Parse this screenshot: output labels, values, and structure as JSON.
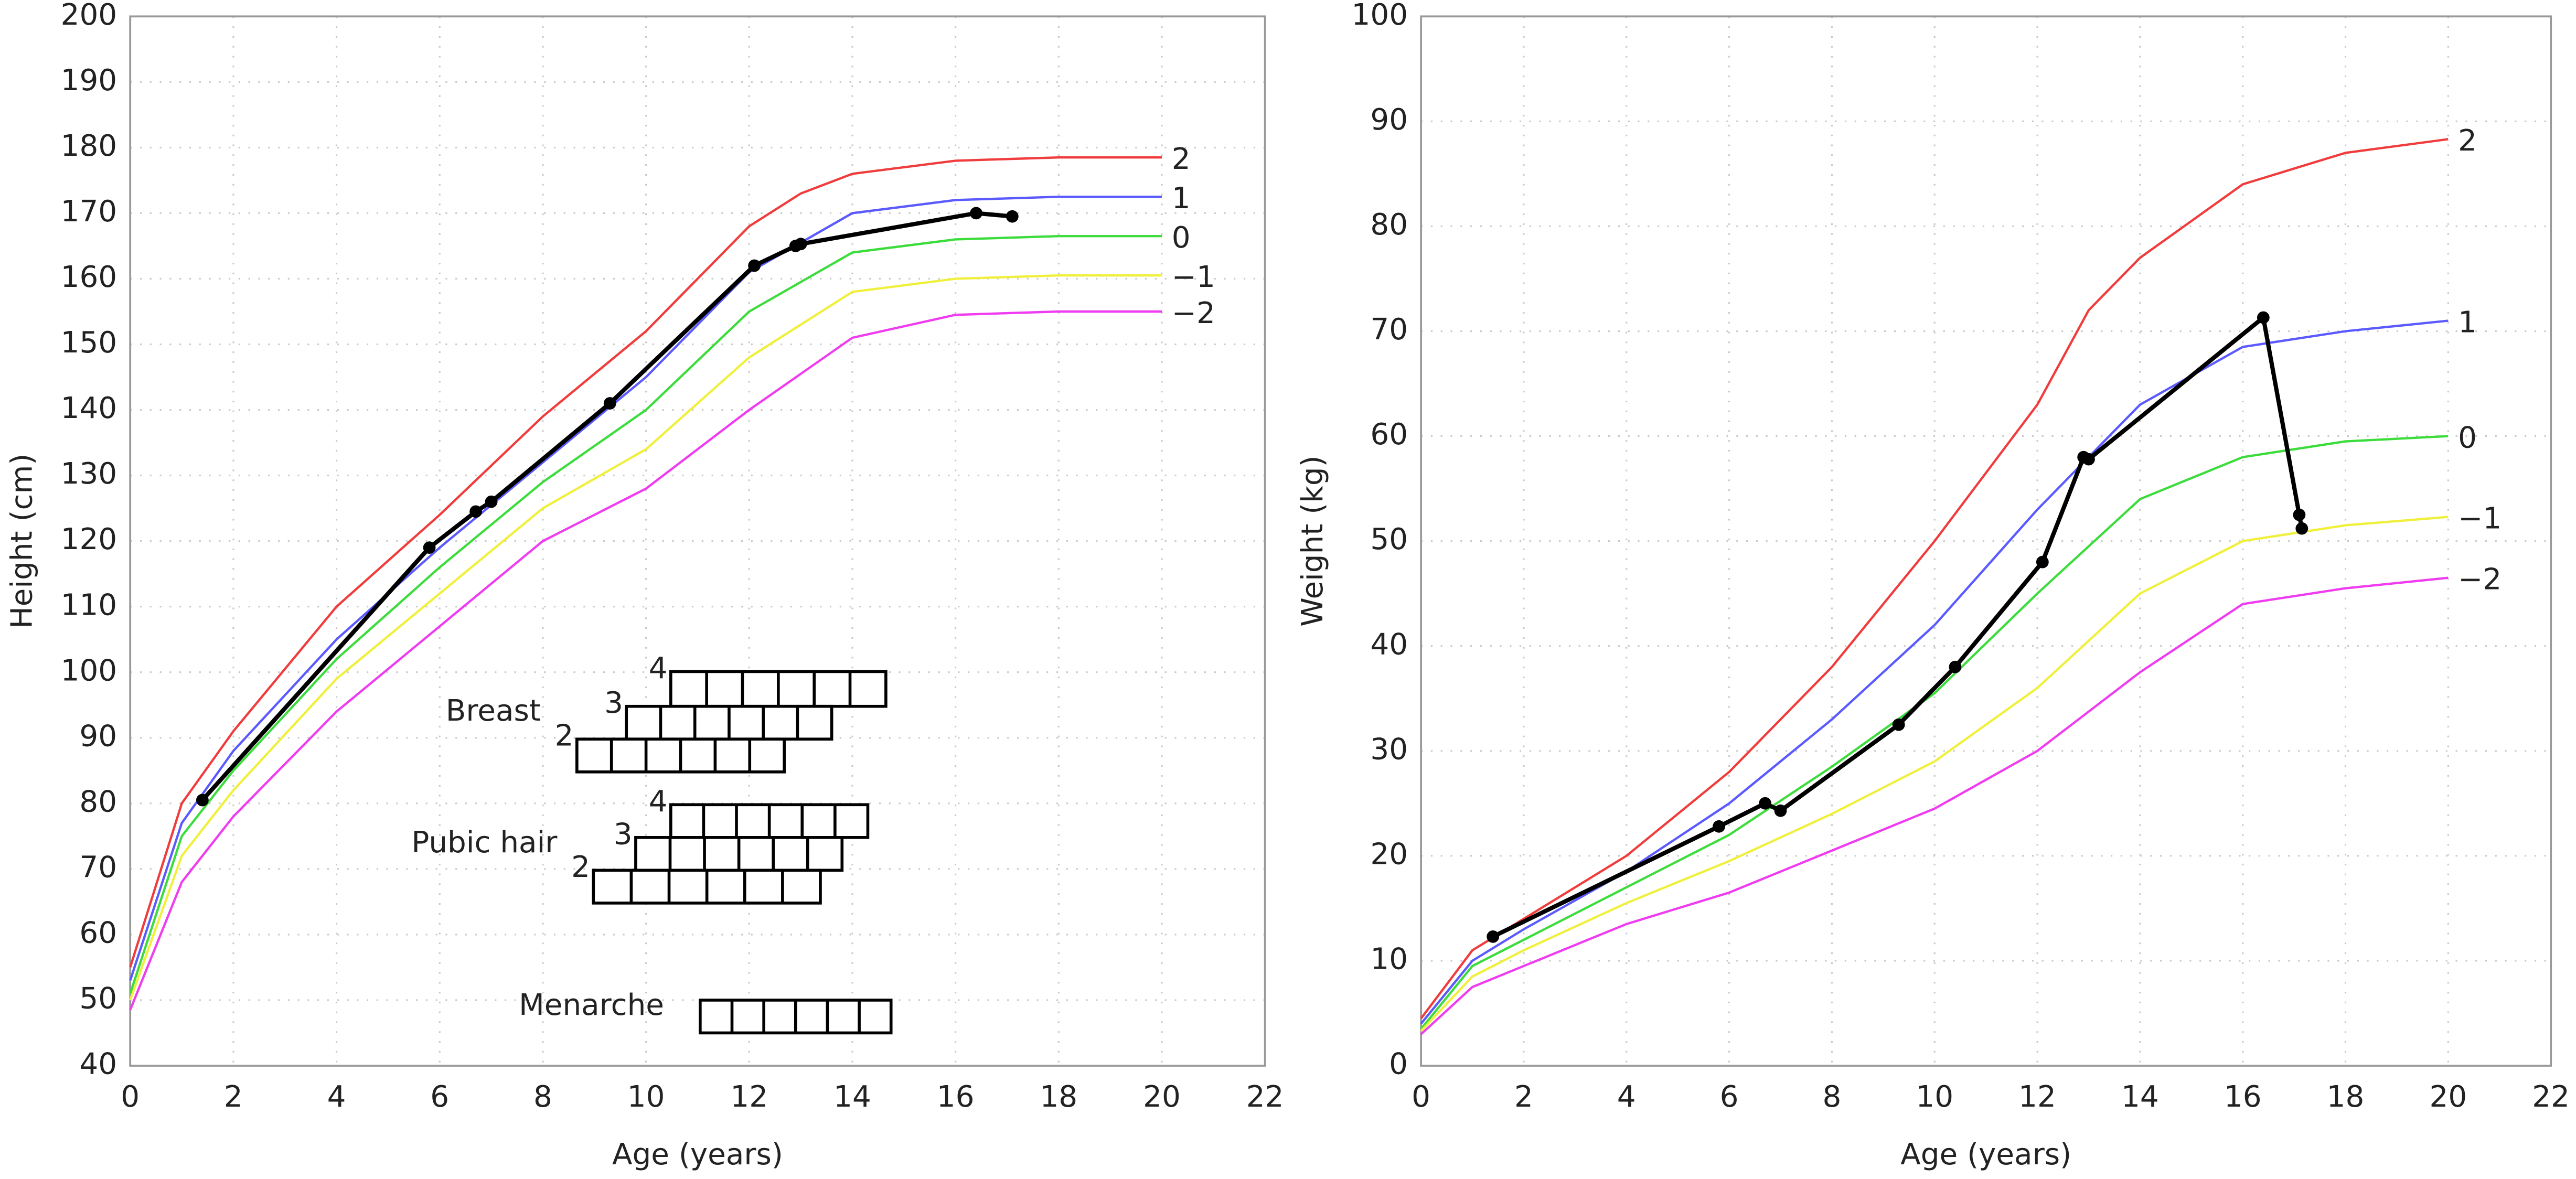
{
  "chart_data": [
    {
      "type": "line",
      "x_label": "Age (years)",
      "y_label": "Height (cm)",
      "xlim": [
        0,
        22
      ],
      "ylim": [
        40,
        200
      ],
      "xticks": [
        0,
        2,
        4,
        6,
        8,
        10,
        12,
        14,
        16,
        18,
        20,
        22
      ],
      "yticks": [
        40,
        50,
        60,
        70,
        80,
        90,
        100,
        110,
        120,
        130,
        140,
        150,
        160,
        170,
        180,
        190,
        200
      ],
      "grid": true,
      "series": [
        {
          "name": "2",
          "color": "#f03c3c",
          "x": [
            0,
            1,
            2,
            4,
            6,
            8,
            10,
            12,
            13,
            14,
            16,
            18,
            20
          ],
          "values": [
            55,
            80,
            91,
            110,
            124,
            139,
            152,
            168,
            173,
            176,
            178,
            178.5,
            178.5
          ]
        },
        {
          "name": "1",
          "color": "#5a5aff",
          "x": [
            0,
            1,
            2,
            4,
            6,
            8,
            10,
            12,
            14,
            16,
            18,
            20
          ],
          "values": [
            53,
            77,
            88,
            105,
            119,
            132,
            145,
            161,
            170,
            172,
            172.5,
            172.5
          ]
        },
        {
          "name": "0",
          "color": "#3cdc3c",
          "x": [
            0,
            1,
            2,
            4,
            6,
            8,
            10,
            12,
            14,
            16,
            18,
            20
          ],
          "values": [
            51,
            75,
            85,
            102,
            116,
            129,
            140,
            155,
            164,
            166,
            166.5,
            166.5
          ]
        },
        {
          "name": "−1",
          "color": "#f0f03c",
          "x": [
            0,
            1,
            2,
            4,
            6,
            8,
            10,
            12,
            14,
            16,
            18,
            20
          ],
          "values": [
            50,
            72,
            82,
            99,
            112,
            125,
            134,
            148,
            158,
            160,
            160.5,
            160.5
          ]
        },
        {
          "name": "−2",
          "color": "#f03cf0",
          "x": [
            0,
            1,
            2,
            4,
            6,
            8,
            10,
            12,
            14,
            16,
            18,
            20
          ],
          "values": [
            48.5,
            68,
            78,
            94,
            107,
            120,
            128,
            140,
            151,
            154.5,
            155,
            155
          ]
        },
        {
          "color": "#000000",
          "markers": true,
          "x": [
            1.4,
            5.8,
            6.7,
            7,
            9.3,
            12.1,
            12.9,
            13,
            16.4,
            17.1
          ],
          "values": [
            80.5,
            119,
            124.5,
            126,
            141,
            162,
            165,
            165.3,
            170,
            169.5
          ]
        }
      ],
      "stage_groups": [
        {
          "label": "Breast",
          "rows": [
            {
              "label": "4",
              "x": [
                10.48,
                14.65
              ],
              "y": [
                94.8,
                100.1
              ],
              "cells": 6
            },
            {
              "label": "3",
              "x": [
                9.62,
                13.6
              ],
              "y": [
                89.8,
                94.8
              ],
              "cells": 6
            },
            {
              "label": "2",
              "x": [
                8.66,
                12.68
              ],
              "y": [
                84.8,
                89.8
              ],
              "cells": 6
            }
          ]
        },
        {
          "label": "Pubic hair",
          "rows": [
            {
              "label": "4",
              "x": [
                10.48,
                14.3
              ],
              "y": [
                74.8,
                79.8
              ],
              "cells": 6
            },
            {
              "label": "3",
              "x": [
                9.8,
                13.8
              ],
              "y": [
                69.8,
                74.8
              ],
              "cells": 6
            },
            {
              "label": "2",
              "x": [
                8.98,
                13.38
              ],
              "y": [
                64.8,
                69.8
              ],
              "cells": 6
            }
          ]
        },
        {
          "label": "Menarche",
          "rows": [
            {
              "x": [
                11.05,
                14.75
              ],
              "y": [
                45,
                50
              ],
              "cells": 6
            }
          ]
        }
      ]
    },
    {
      "type": "line",
      "x_label": "Age (years)",
      "y_label": "Weight (kg)",
      "xlim": [
        0,
        22
      ],
      "ylim": [
        0,
        100
      ],
      "xticks": [
        0,
        2,
        4,
        6,
        8,
        10,
        12,
        14,
        16,
        18,
        20,
        22
      ],
      "yticks": [
        0,
        10,
        20,
        30,
        40,
        50,
        60,
        70,
        80,
        90,
        100
      ],
      "grid": true,
      "series": [
        {
          "name": "2",
          "color": "#f03c3c",
          "x": [
            0,
            1,
            2,
            4,
            6,
            8,
            10,
            12,
            13,
            14,
            16,
            18,
            20
          ],
          "values": [
            4.5,
            11,
            14,
            20,
            28,
            38,
            50,
            63,
            72,
            77,
            84,
            87,
            88.3
          ]
        },
        {
          "name": "1",
          "color": "#5a5aff",
          "x": [
            0,
            1,
            2,
            4,
            6,
            8,
            10,
            12,
            14,
            16,
            18,
            20
          ],
          "values": [
            4,
            10,
            13,
            18.5,
            25,
            33,
            42,
            53,
            63,
            68.5,
            70,
            71
          ]
        },
        {
          "name": "0",
          "color": "#3cdc3c",
          "x": [
            0,
            1,
            2,
            4,
            6,
            8,
            10,
            12,
            14,
            16,
            18,
            20
          ],
          "values": [
            3.5,
            9.5,
            12,
            17,
            22,
            28.5,
            35.5,
            45,
            54,
            58,
            59.5,
            60
          ]
        },
        {
          "name": "−1",
          "color": "#f0f03c",
          "x": [
            0,
            1,
            2,
            4,
            6,
            8,
            10,
            12,
            14,
            16,
            18,
            20
          ],
          "values": [
            3.3,
            8.5,
            11,
            15.5,
            19.5,
            24,
            29,
            36,
            45,
            50,
            51.5,
            52.3
          ]
        },
        {
          "name": "−2",
          "color": "#f03cf0",
          "x": [
            0,
            1,
            2,
            4,
            6,
            8,
            10,
            12,
            14,
            16,
            18,
            20
          ],
          "values": [
            3,
            7.5,
            9.5,
            13.5,
            16.5,
            20.5,
            24.5,
            30,
            37.5,
            44,
            45.5,
            46.5
          ]
        },
        {
          "color": "#000000",
          "markers": true,
          "x": [
            1.4,
            5.8,
            6.7,
            7,
            9.3,
            10.4,
            12.1,
            12.9,
            13,
            16.4,
            17.1,
            17.15
          ],
          "values": [
            12.3,
            22.8,
            25,
            24.3,
            32.5,
            38,
            48,
            58,
            57.8,
            71.3,
            52.5,
            51.2
          ]
        }
      ]
    }
  ]
}
